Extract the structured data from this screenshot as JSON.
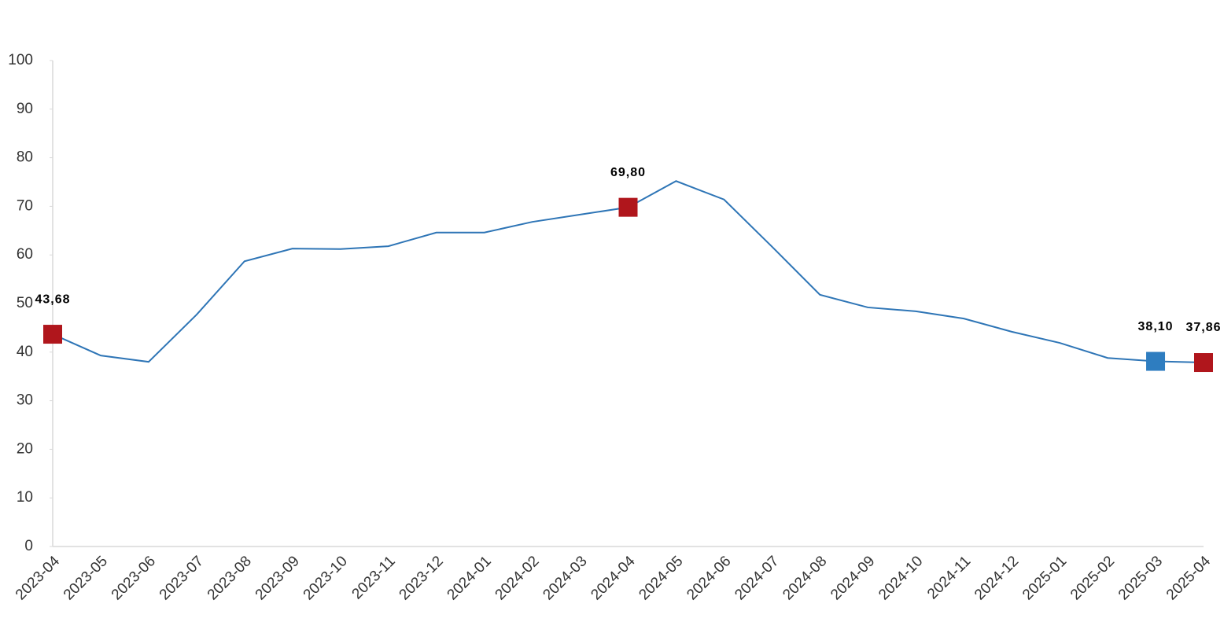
{
  "chart_data": {
    "type": "line",
    "categories": [
      "2023-04",
      "2023-05",
      "2023-06",
      "2023-07",
      "2023-08",
      "2023-09",
      "2023-10",
      "2023-11",
      "2023-12",
      "2024-01",
      "2024-02",
      "2024-03",
      "2024-04",
      "2024-05",
      "2024-06",
      "2024-07",
      "2024-08",
      "2024-09",
      "2024-10",
      "2024-11",
      "2024-12",
      "2025-01",
      "2025-02",
      "2025-03",
      "2025-04"
    ],
    "series": [
      {
        "color": "#2e75b6",
        "values": [
          43.68,
          39.3,
          38.0,
          47.7,
          58.7,
          61.3,
          61.2,
          61.8,
          64.6,
          64.6,
          66.8,
          68.3,
          69.8,
          75.2,
          71.4,
          61.7,
          51.8,
          49.2,
          48.4,
          46.9,
          44.2,
          41.9,
          38.8,
          38.1,
          37.86
        ],
        "value_labels": [
          "43,68",
          null,
          null,
          null,
          null,
          null,
          null,
          null,
          null,
          null,
          null,
          null,
          "69,80",
          null,
          null,
          null,
          null,
          null,
          null,
          null,
          null,
          null,
          null,
          "38,10",
          "37,86"
        ],
        "marker_colors": [
          "#b0161c",
          null,
          null,
          null,
          null,
          null,
          null,
          null,
          null,
          null,
          null,
          null,
          "#b0161c",
          null,
          null,
          null,
          null,
          null,
          null,
          null,
          null,
          null,
          null,
          "#2e7dc0",
          "#b0161c"
        ]
      }
    ],
    "ylim": [
      0,
      100
    ],
    "yticks": [
      0,
      10,
      20,
      30,
      40,
      50,
      60,
      70,
      80,
      90,
      100
    ],
    "grid": false
  }
}
